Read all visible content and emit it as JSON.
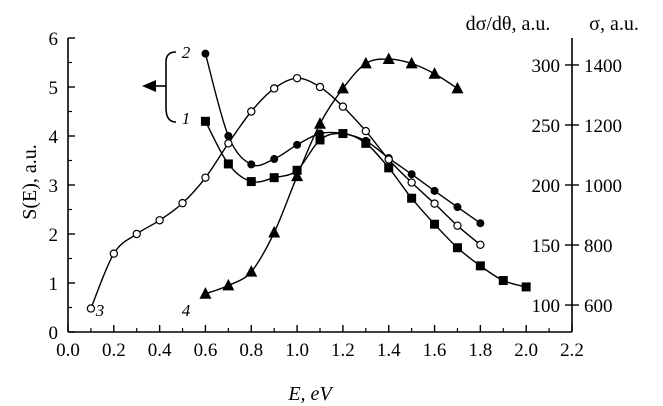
{
  "chart_data": {
    "type": "line",
    "xlabel": "E, eV",
    "ylabel_left": "S(E), a.u.",
    "ylabel_right_1": "dσ/dθ, a.u.",
    "ylabel_right_2": "σ, a.u.",
    "xlim": [
      0.0,
      2.2
    ],
    "xticks": [
      "0.0",
      "0.2",
      "0.4",
      "0.6",
      "0.8",
      "1.0",
      "1.2",
      "1.4",
      "1.6",
      "1.8",
      "2.0",
      "2.2"
    ],
    "ylim_left": [
      0,
      6
    ],
    "yticks_left": [
      "0",
      "1",
      "2",
      "3",
      "4",
      "5",
      "6"
    ],
    "yticks_right_1": [
      "100",
      "150",
      "200",
      "250",
      "300"
    ],
    "yticks_right_2": [
      "600",
      "800",
      "1000",
      "1200",
      "1400"
    ],
    "grid": false,
    "series": [
      {
        "name": "1",
        "marker": "square",
        "x": [
          0.6,
          0.7,
          0.8,
          0.9,
          1.0,
          1.1,
          1.2,
          1.3,
          1.4,
          1.5,
          1.6,
          1.7,
          1.8,
          1.9,
          2.0
        ],
        "y": [
          4.3,
          3.43,
          3.07,
          3.15,
          3.3,
          3.92,
          4.05,
          3.85,
          3.35,
          2.73,
          2.2,
          1.72,
          1.35,
          1.05,
          0.92
        ]
      },
      {
        "name": "2",
        "marker": "filled-circle",
        "x": [
          0.6,
          0.7,
          0.8,
          0.9,
          1.0,
          1.1,
          1.2,
          1.3,
          1.4,
          1.5,
          1.6,
          1.7,
          1.8
        ],
        "y": [
          5.68,
          4.0,
          3.42,
          3.53,
          3.82,
          4.05,
          4.05,
          3.9,
          3.55,
          3.22,
          2.88,
          2.55,
          2.22
        ]
      },
      {
        "name": "3",
        "marker": "open-circle",
        "x": [
          0.1,
          0.2,
          0.3,
          0.4,
          0.5,
          0.6,
          0.7,
          0.8,
          0.9,
          1.0,
          1.1,
          1.2,
          1.3,
          1.4,
          1.5,
          1.6,
          1.7,
          1.8
        ],
        "y": [
          0.48,
          1.6,
          2.0,
          2.28,
          2.63,
          3.15,
          3.85,
          4.5,
          4.97,
          5.18,
          5.0,
          4.6,
          4.1,
          3.52,
          3.05,
          2.62,
          2.17,
          1.78
        ]
      },
      {
        "name": "4",
        "marker": "filled-triangle",
        "x": [
          0.6,
          0.7,
          0.8,
          0.9,
          1.0,
          1.1,
          1.2,
          1.3,
          1.4,
          1.5,
          1.6,
          1.7
        ],
        "y": [
          0.78,
          0.95,
          1.23,
          2.03,
          3.18,
          4.25,
          4.97,
          5.48,
          5.57,
          5.48,
          5.27,
          4.97
        ]
      }
    ],
    "annotations": [
      "1",
      "2",
      "3",
      "4"
    ]
  }
}
